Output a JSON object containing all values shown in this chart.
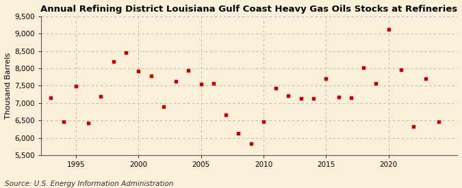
{
  "title": "Annual Refining District Louisiana Gulf Coast Heavy Gas Oils Stocks at Refineries",
  "ylabel": "Thousand Barrels",
  "source": "Source: U.S. Energy Information Administration",
  "background_color": "#faefd9",
  "marker_color": "#cc0000",
  "grid_color": "#b0b0b0",
  "ylim": [
    5500,
    9500
  ],
  "yticks": [
    5500,
    6000,
    6500,
    7000,
    7500,
    8000,
    8500,
    9000,
    9500
  ],
  "xlim": [
    1992.2,
    2025.5
  ],
  "xticks": [
    1995,
    2000,
    2005,
    2010,
    2015,
    2020
  ],
  "years": [
    1993,
    1994,
    1995,
    1996,
    1997,
    1998,
    1999,
    2000,
    2001,
    2002,
    2003,
    2004,
    2005,
    2006,
    2007,
    2008,
    2009,
    2010,
    2011,
    2012,
    2013,
    2014,
    2015,
    2016,
    2017,
    2018,
    2019,
    2020,
    2021,
    2022,
    2023,
    2024
  ],
  "values": [
    7150,
    6470,
    7490,
    6420,
    7200,
    8200,
    8450,
    7930,
    7790,
    6900,
    7630,
    7940,
    7540,
    7560,
    6660,
    6130,
    5840,
    6470,
    7440,
    7220,
    7130,
    7140,
    7710,
    7170,
    7160,
    8030,
    7570,
    9120,
    7960,
    6320,
    7710,
    6470
  ],
  "title_fontsize": 9.5,
  "axis_label_fontsize": 8,
  "tick_fontsize": 7.5,
  "source_fontsize": 7.5
}
